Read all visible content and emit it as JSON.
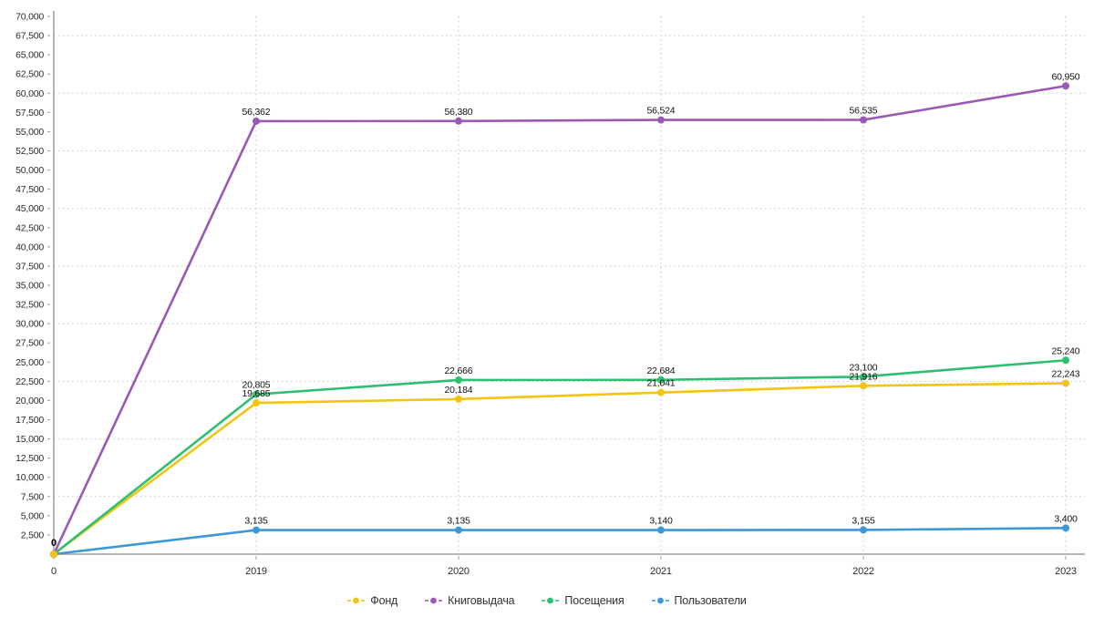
{
  "chart_data": {
    "type": "line",
    "title": "",
    "xlabel": "",
    "ylabel": "",
    "categories": [
      "0",
      "2019",
      "2020",
      "2021",
      "2022",
      "2023"
    ],
    "series": [
      {
        "key": "fund",
        "name": "Фонд",
        "color": "#F2C413",
        "values": [
          0,
          19685,
          20184,
          21041,
          21916,
          22243
        ]
      },
      {
        "key": "loans",
        "name": "Книговыдача",
        "color": "#9B59B6",
        "values": [
          0,
          56362,
          56380,
          56524,
          56535,
          60950
        ]
      },
      {
        "key": "visits",
        "name": "Посещения",
        "color": "#2FBF71",
        "values": [
          0,
          20805,
          22666,
          22684,
          23100,
          25240
        ]
      },
      {
        "key": "users",
        "name": "Пользователи",
        "color": "#3E97D8",
        "values": [
          0,
          3135,
          3135,
          3140,
          3155,
          3400
        ]
      }
    ],
    "ylim": [
      0,
      70000
    ],
    "y_tick_step": 2500,
    "y_grid_step": 7500,
    "grid": "dotted",
    "legend_position": "bottom",
    "point_labels": true,
    "origin_label": "0"
  },
  "style_colors": {
    "axis": "#9E9E9E",
    "grid": "#C6C6C6",
    "tick": "#9E9E9E",
    "axis_text": "#2B2B2B",
    "point_label_text": "#111111"
  }
}
